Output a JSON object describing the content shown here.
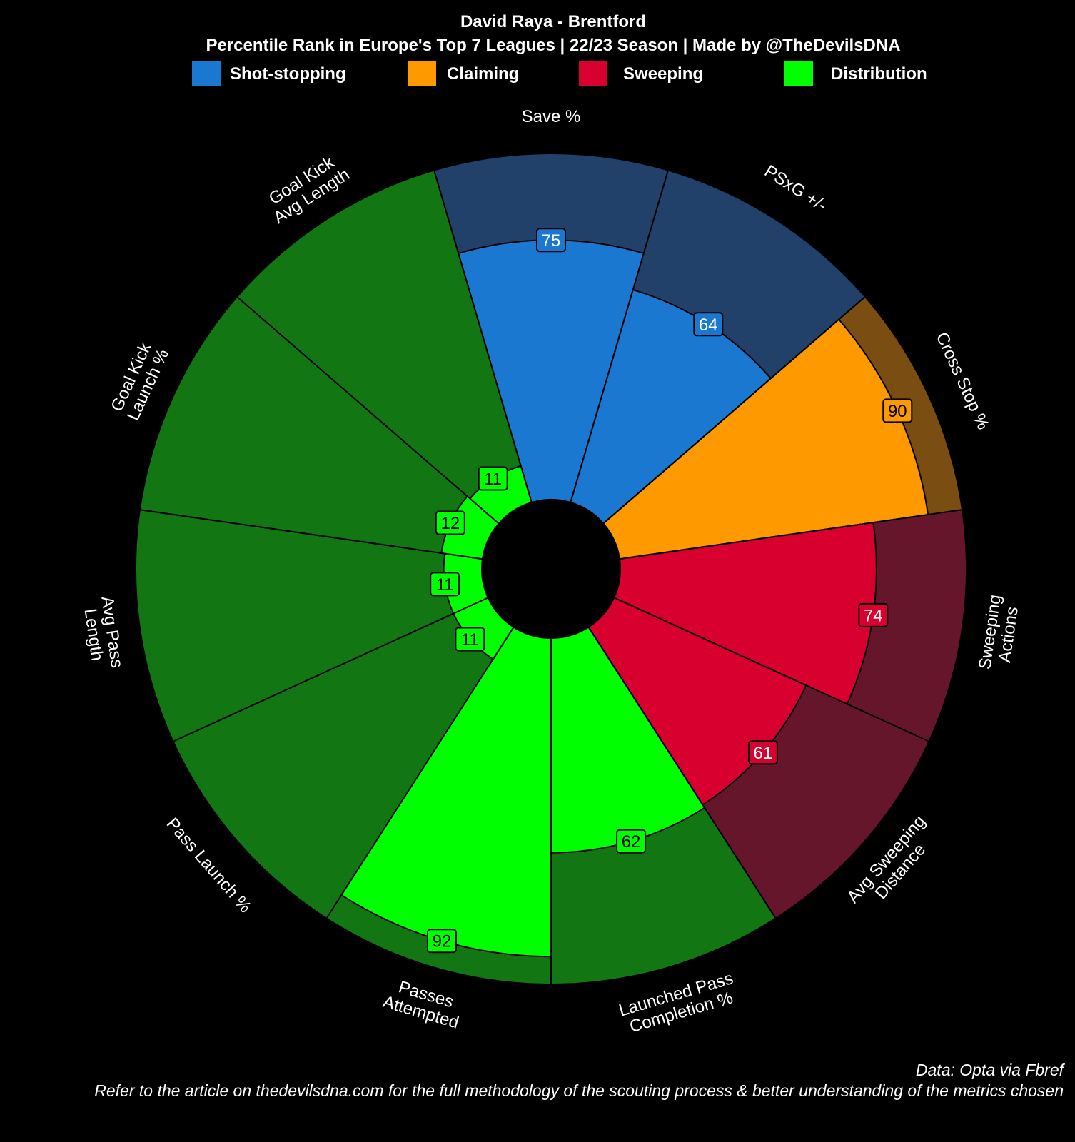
{
  "header": {
    "title": "David Raya - Brentford",
    "subtitle": "Percentile Rank in Europe's Top 7 Leagues | 22/23 Season | Made by @TheDevilsDNA"
  },
  "footer": {
    "source": "Data: Opta via Fbref",
    "note": "Refer to the article on thedevilsdna.com for the full methodology of the scouting process & better understanding of the metrics chosen"
  },
  "chart_data": {
    "type": "pizza",
    "title": "David Raya - Brentford",
    "subtitle": "Percentile Rank in Europe's Top 7 Leagues | 22/23 Season | Made by @TheDevilsDNA",
    "range": [
      0,
      100
    ],
    "categories": [
      {
        "name": "Shot-stopping",
        "color": "#1a78d1",
        "background": "#21406a",
        "label_bg": "#1a78d1",
        "text_color": "#ffffff"
      },
      {
        "name": "Claiming",
        "color": "#ff9900",
        "background": "#7a4d12",
        "label_bg": "#ff9900",
        "text_color": "#000000"
      },
      {
        "name": "Sweeping",
        "color": "#d8002e",
        "background": "#66162a",
        "label_bg": "#d8002e",
        "text_color": "#ffffff"
      },
      {
        "name": "Distribution",
        "color": "#00ff00",
        "background": "#127712",
        "label_bg": "#00ff00",
        "text_color": "#000000"
      }
    ],
    "params": [
      {
        "label": [
          "Save %"
        ],
        "value": 75,
        "category": "Shot-stopping"
      },
      {
        "label": [
          "PSxG +/-"
        ],
        "value": 64,
        "category": "Shot-stopping"
      },
      {
        "label": [
          "Cross Stop %"
        ],
        "value": 90,
        "category": "Claiming"
      },
      {
        "label": [
          "Sweeping",
          "Actions"
        ],
        "value": 74,
        "category": "Sweeping"
      },
      {
        "label": [
          "Avg Sweeping",
          "Distance"
        ],
        "value": 61,
        "category": "Sweeping"
      },
      {
        "label": [
          "Launched Pass",
          "Completion %"
        ],
        "value": 62,
        "category": "Distribution"
      },
      {
        "label": [
          "Passes",
          "Attempted"
        ],
        "value": 92,
        "category": "Distribution"
      },
      {
        "label": [
          "Pass Launch %"
        ],
        "value": 11,
        "category": "Distribution"
      },
      {
        "label": [
          "Avg Pass",
          "Length"
        ],
        "value": 11,
        "category": "Distribution"
      },
      {
        "label": [
          "Goal Kick",
          "Launch %"
        ],
        "value": 12,
        "category": "Distribution"
      },
      {
        "label": [
          "Goal Kick",
          "Avg Length"
        ],
        "value": 11,
        "category": "Distribution"
      }
    ]
  }
}
